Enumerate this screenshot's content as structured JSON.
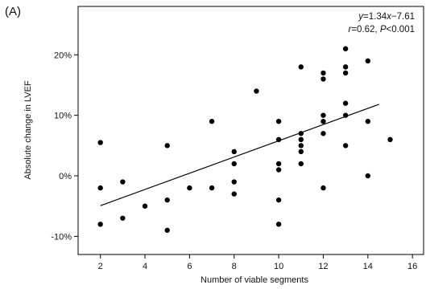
{
  "chart_data": {
    "type": "scatter",
    "panel_label": "(A)",
    "xlabel": "Number of viable segments",
    "ylabel": "Absolute change in LVEF",
    "xlim": [
      1,
      16.5
    ],
    "ylim": [
      -13,
      28
    ],
    "x_ticks": [
      2,
      4,
      6,
      8,
      10,
      12,
      14,
      16
    ],
    "x_tick_labels": [
      "2",
      "4",
      "6",
      "8",
      "10",
      "12",
      "14",
      "16"
    ],
    "y_ticks": [
      -10,
      0,
      10,
      20
    ],
    "y_tick_labels": [
      "-10%",
      "0%",
      "10%",
      "20%"
    ],
    "grid": false,
    "annotation": {
      "line1": {
        "y": "y",
        "eq": "=1.34",
        "x": "x",
        "rest": "−7.61"
      },
      "line2": {
        "r": "r",
        "req": "=0.62, ",
        "p": "P",
        "rest": "<0.001"
      }
    },
    "regression": {
      "slope": 1.34,
      "intercept": -7.61,
      "x_from": 2,
      "x_to": 14.5
    },
    "points": [
      {
        "x": 2,
        "y": 5.5
      },
      {
        "x": 2,
        "y": -2
      },
      {
        "x": 2,
        "y": -8
      },
      {
        "x": 3,
        "y": -1
      },
      {
        "x": 3,
        "y": -7
      },
      {
        "x": 4,
        "y": -5
      },
      {
        "x": 5,
        "y": 5
      },
      {
        "x": 5,
        "y": -4
      },
      {
        "x": 5,
        "y": -9
      },
      {
        "x": 6,
        "y": -2
      },
      {
        "x": 7,
        "y": 9
      },
      {
        "x": 7,
        "y": -2
      },
      {
        "x": 8,
        "y": 4
      },
      {
        "x": 8,
        "y": 2
      },
      {
        "x": 8,
        "y": -1
      },
      {
        "x": 8,
        "y": -3
      },
      {
        "x": 9,
        "y": 14
      },
      {
        "x": 10,
        "y": 9
      },
      {
        "x": 10,
        "y": 6
      },
      {
        "x": 10,
        "y": 2
      },
      {
        "x": 10,
        "y": 1
      },
      {
        "x": 10,
        "y": -4
      },
      {
        "x": 10,
        "y": -8
      },
      {
        "x": 11,
        "y": 18
      },
      {
        "x": 11,
        "y": 7
      },
      {
        "x": 11,
        "y": 6
      },
      {
        "x": 11,
        "y": 5
      },
      {
        "x": 11,
        "y": 4
      },
      {
        "x": 11,
        "y": 2
      },
      {
        "x": 12,
        "y": 17
      },
      {
        "x": 12,
        "y": 16
      },
      {
        "x": 12,
        "y": 10
      },
      {
        "x": 12,
        "y": 9
      },
      {
        "x": 12,
        "y": 7
      },
      {
        "x": 12,
        "y": -2
      },
      {
        "x": 13,
        "y": 21
      },
      {
        "x": 13,
        "y": 18
      },
      {
        "x": 13,
        "y": 17
      },
      {
        "x": 13,
        "y": 12
      },
      {
        "x": 13,
        "y": 10
      },
      {
        "x": 13,
        "y": 5
      },
      {
        "x": 14,
        "y": 19
      },
      {
        "x": 14,
        "y": 9
      },
      {
        "x": 14,
        "y": 0
      },
      {
        "x": 15,
        "y": 6
      }
    ],
    "colors": {
      "points": "#000000",
      "line": "#000000",
      "axis": "#000000"
    }
  }
}
